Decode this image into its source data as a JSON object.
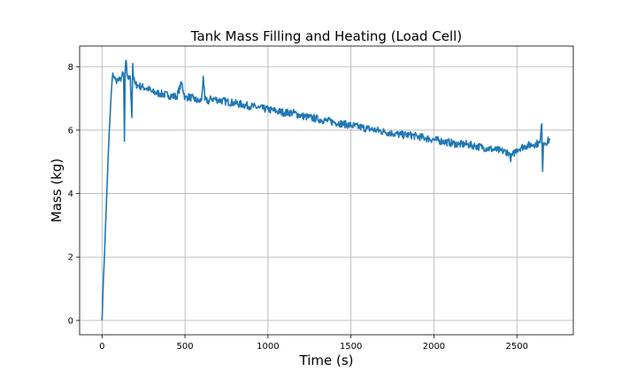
{
  "chart_data": {
    "type": "line",
    "title": "Tank Mass Filling and Heating (Load Cell)",
    "xlabel": "Time (s)",
    "ylabel": "Mass (kg)",
    "xlim": [
      -135,
      2840
    ],
    "ylim": [
      -0.45,
      8.65
    ],
    "xticks": [
      0,
      500,
      1000,
      1500,
      2000,
      2500
    ],
    "yticks": [
      0,
      2,
      4,
      6,
      8
    ],
    "grid": true,
    "series": [
      {
        "color": "#1f77b4",
        "x": [
          0,
          5,
          10,
          15,
          20,
          25,
          30,
          35,
          40,
          45,
          50,
          55,
          60,
          65,
          70,
          75,
          80,
          85,
          90,
          100,
          110,
          120,
          130,
          135,
          140,
          145,
          150,
          160,
          170,
          180,
          185,
          190,
          200,
          220,
          250,
          280,
          300,
          350,
          400,
          450,
          480,
          500,
          520,
          550,
          580,
          600,
          610,
          620,
          640,
          660,
          700,
          750,
          800,
          850,
          900,
          950,
          1000,
          1050,
          1100,
          1150,
          1200,
          1250,
          1300,
          1350,
          1400,
          1450,
          1500,
          1550,
          1600,
          1650,
          1700,
          1750,
          1800,
          1850,
          1900,
          1950,
          2000,
          2050,
          2100,
          2150,
          2200,
          2250,
          2300,
          2350,
          2400,
          2450,
          2460,
          2500,
          2550,
          2600,
          2640,
          2650,
          2655,
          2660,
          2670,
          2700
        ],
        "y": [
          0.0,
          0.8,
          1.5,
          2.1,
          2.8,
          3.5,
          4.2,
          4.9,
          5.5,
          6.1,
          6.6,
          7.1,
          7.5,
          7.8,
          7.7,
          7.65,
          7.6,
          7.55,
          7.6,
          7.55,
          7.6,
          7.7,
          7.8,
          5.65,
          7.9,
          8.2,
          7.8,
          7.6,
          7.7,
          6.4,
          8.1,
          7.6,
          7.45,
          7.4,
          7.35,
          7.3,
          7.2,
          7.15,
          7.1,
          7.05,
          7.5,
          7.0,
          7.05,
          7.0,
          6.9,
          6.95,
          7.7,
          6.95,
          6.9,
          7.0,
          6.95,
          6.9,
          6.85,
          6.8,
          6.75,
          6.7,
          6.65,
          6.6,
          6.55,
          6.55,
          6.45,
          6.4,
          6.35,
          6.3,
          6.25,
          6.2,
          6.15,
          6.1,
          6.05,
          6.0,
          5.95,
          5.9,
          5.85,
          5.85,
          5.8,
          5.75,
          5.7,
          5.65,
          5.6,
          5.55,
          5.55,
          5.5,
          5.45,
          5.4,
          5.35,
          5.3,
          5.1,
          5.4,
          5.5,
          5.55,
          5.6,
          6.2,
          4.7,
          5.6,
          5.6,
          5.7
        ]
      }
    ]
  }
}
